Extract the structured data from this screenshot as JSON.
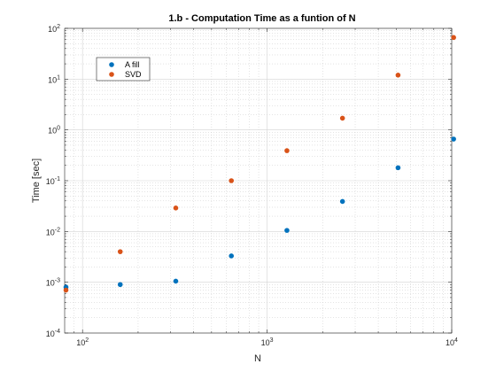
{
  "chart_data": {
    "type": "scatter",
    "title": "1.b - Computation Time as a funtion of N",
    "xlabel": "N",
    "ylabel": "Time [sec]",
    "xscale": "log",
    "yscale": "log",
    "xlim": [
      80,
      10000
    ],
    "ylim": [
      0.0001,
      100
    ],
    "grid": true,
    "minor_grid": true,
    "legend_position": "upper-left",
    "x_ticks": [
      {
        "value": 100,
        "base": "10",
        "exp": "2"
      },
      {
        "value": 1000,
        "base": "10",
        "exp": "3"
      },
      {
        "value": 10000,
        "base": "10",
        "exp": "4"
      }
    ],
    "y_ticks": [
      {
        "value": 0.0001,
        "base": "10",
        "exp": "-4"
      },
      {
        "value": 0.001,
        "base": "10",
        "exp": "-3"
      },
      {
        "value": 0.01,
        "base": "10",
        "exp": "-2"
      },
      {
        "value": 0.1,
        "base": "10",
        "exp": "-1"
      },
      {
        "value": 1,
        "base": "10",
        "exp": "0"
      },
      {
        "value": 10,
        "base": "10",
        "exp": "1"
      },
      {
        "value": 100,
        "base": "10",
        "exp": "2"
      }
    ],
    "x": [
      80,
      160,
      320,
      640,
      1280,
      2560,
      5120,
      10240
    ],
    "series": [
      {
        "name": "A fill",
        "color": "#0072BD",
        "values": [
          0.0008,
          0.0009,
          0.00105,
          0.0033,
          0.0105,
          0.039,
          0.18,
          0.66
        ]
      },
      {
        "name": "SVD",
        "color": "#D95319",
        "values": [
          0.0007,
          0.004,
          0.029,
          0.1,
          0.39,
          1.7,
          12,
          66
        ]
      }
    ]
  }
}
